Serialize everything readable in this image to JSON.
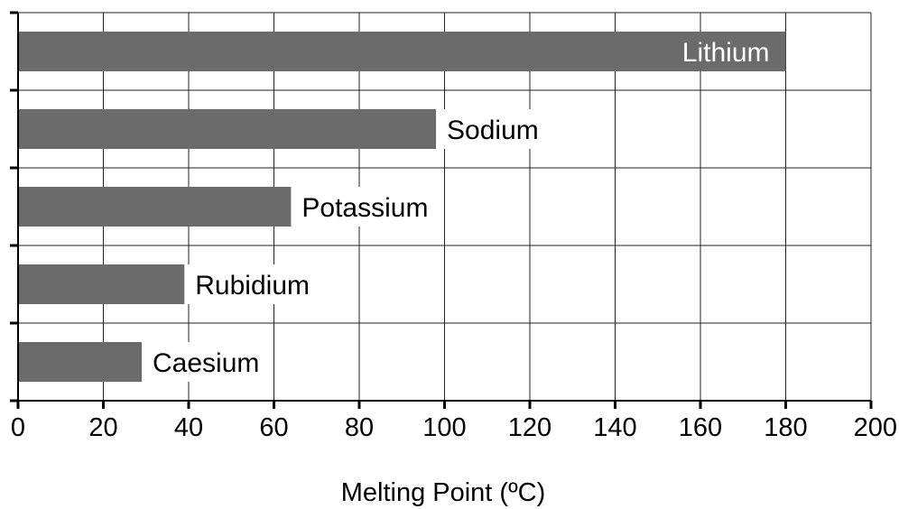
{
  "chart_data": {
    "type": "bar",
    "orientation": "horizontal",
    "categories": [
      "Lithium",
      "Sodium",
      "Potassium",
      "Rubidium",
      "Caesium"
    ],
    "values": [
      180,
      98,
      64,
      39,
      29
    ],
    "xlabel": "Melting Point (ºC)",
    "ylabel": "",
    "xlim": [
      0,
      200
    ],
    "xticks": [
      0,
      20,
      40,
      60,
      80,
      100,
      120,
      140,
      160,
      180,
      200
    ],
    "grid": true,
    "bar_color": "#6b6b6b",
    "label_placement": "inside-end for largest bar, outside-end for others"
  }
}
